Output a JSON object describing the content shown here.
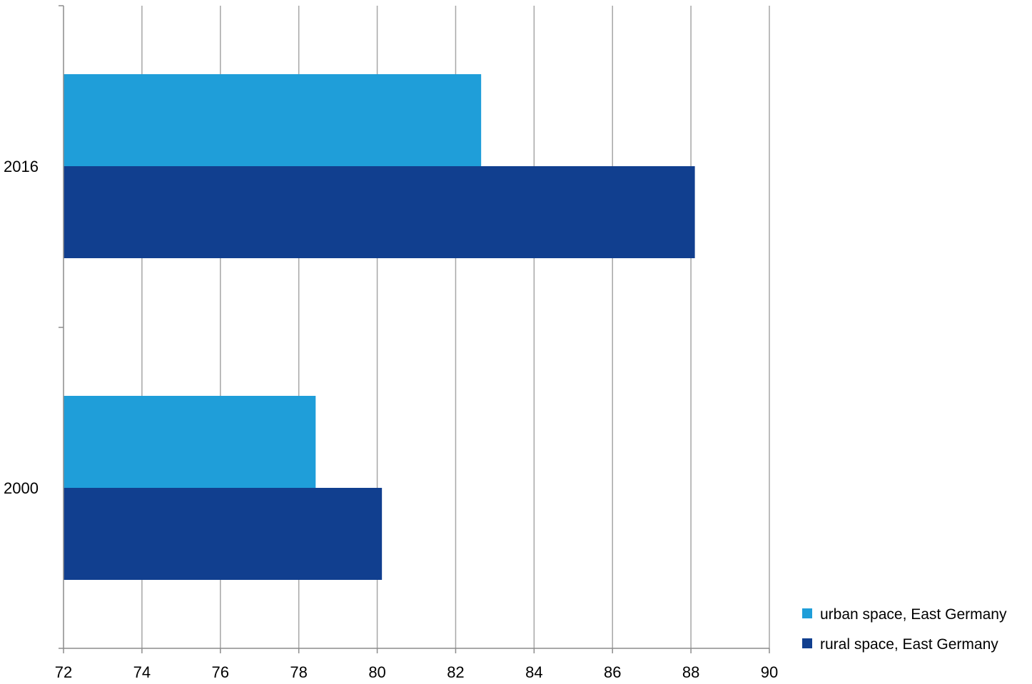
{
  "chart_data": {
    "type": "bar",
    "orientation": "horizontal",
    "categories": [
      "2016",
      "2000"
    ],
    "series": [
      {
        "name": "urban space, East Germany",
        "values": [
          82.65,
          78.43
        ],
        "color": "#1f9ed9"
      },
      {
        "name": "rural space, East Germany",
        "values": [
          88.1,
          80.12
        ],
        "color": "#113f8f"
      }
    ],
    "xlim": [
      72,
      90
    ],
    "x_ticks": [
      72,
      74,
      76,
      78,
      80,
      82,
      84,
      86,
      88,
      90
    ],
    "title": "",
    "xlabel": "",
    "ylabel": "",
    "grid": "vertical",
    "legend_position": "bottom-right"
  },
  "colors": {
    "gridline": "#a6a6a6",
    "axis": "#8c8c8c"
  }
}
